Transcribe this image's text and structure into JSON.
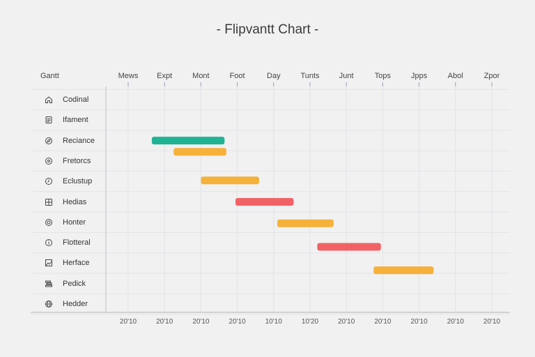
{
  "title": "- Flipvantt Chart -",
  "chart_data": {
    "type": "bar",
    "title": "- Flipvantt Chart -",
    "row_header": "Gantt",
    "columns": [
      "Mews",
      "Expt",
      "Mont",
      "Foot",
      "Day",
      "Tunts",
      "Junt",
      "Tops",
      "Jpps",
      "Abol",
      "Zpor"
    ],
    "x_tick_labels": [
      "20'10",
      "20'10",
      "20'10",
      "20'10",
      "10'10",
      "10'20",
      "20'10",
      "20'10",
      "20'10",
      "20'10",
      "20'10"
    ],
    "rows": [
      {
        "label": "Codinal",
        "icon": "home-icon"
      },
      {
        "label": "Ifament",
        "icon": "document-icon"
      },
      {
        "label": "Reciance",
        "icon": "compass-icon"
      },
      {
        "label": "Fretorcs",
        "icon": "target-icon"
      },
      {
        "label": "Eclustup",
        "icon": "clock-icon"
      },
      {
        "label": "Hedias",
        "icon": "grid-icon"
      },
      {
        "label": "Honter",
        "icon": "settings-icon"
      },
      {
        "label": "Flotteral",
        "icon": "info-icon"
      },
      {
        "label": "Herface",
        "icon": "image-icon"
      },
      {
        "label": "Pedick",
        "icon": "stack-icon"
      },
      {
        "label": "Hedder",
        "icon": "globe-icon"
      }
    ],
    "tasks": [
      {
        "start": 0.65,
        "end": 2.65,
        "lane": 2.0,
        "color": "#1fb394"
      },
      {
        "start": 1.25,
        "end": 2.7,
        "lane": 2.55,
        "color": "#f5b13a"
      },
      {
        "start": 2.0,
        "end": 3.6,
        "lane": 3.95,
        "color": "#f5b13a"
      },
      {
        "start": 2.95,
        "end": 4.55,
        "lane": 5.0,
        "color": "#f16266"
      },
      {
        "start": 4.1,
        "end": 5.65,
        "lane": 6.05,
        "color": "#f5b13a"
      },
      {
        "start": 5.2,
        "end": 6.95,
        "lane": 7.2,
        "color": "#f16266"
      },
      {
        "start": 6.75,
        "end": 8.4,
        "lane": 8.35,
        "color": "#f5b13a"
      }
    ],
    "grid": true
  }
}
